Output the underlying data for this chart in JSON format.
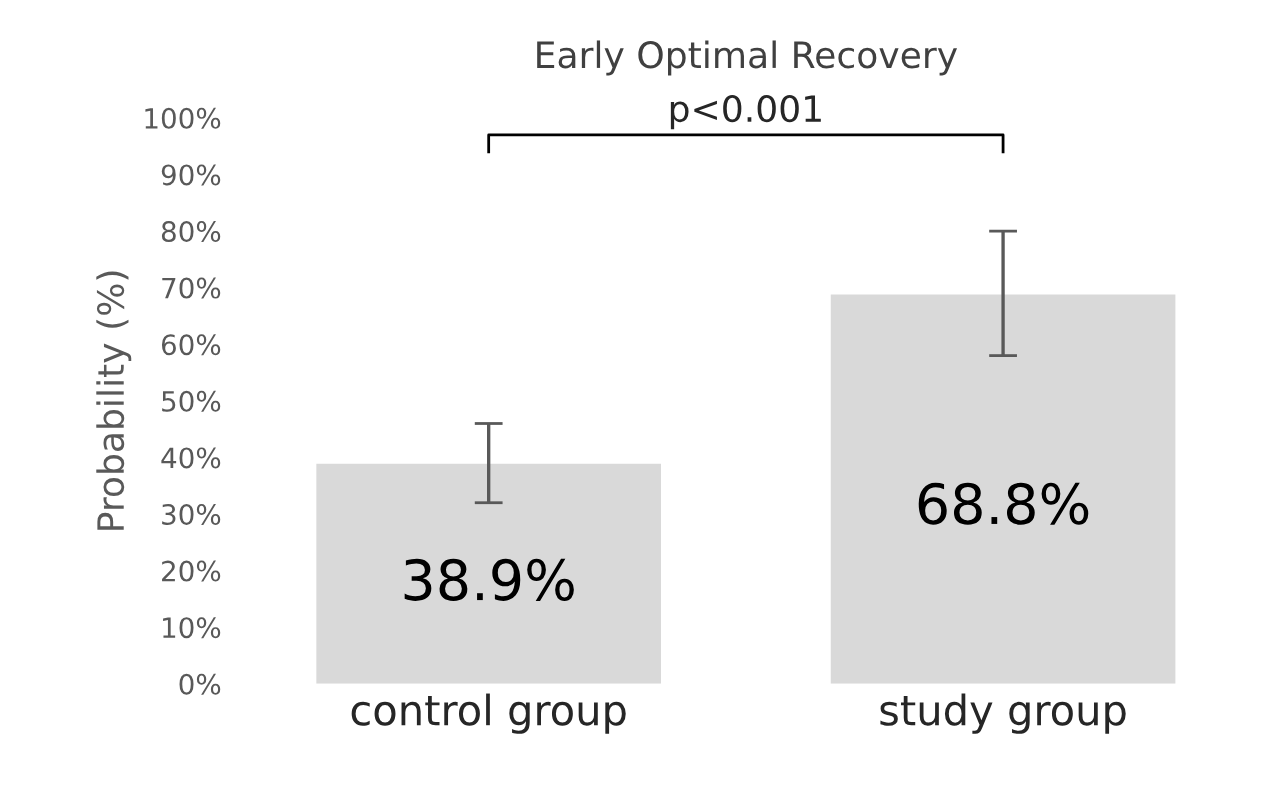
{
  "chart_data": {
    "type": "bar",
    "title": "Early Optimal Recovery",
    "ylabel": "Probability (%)",
    "categories": [
      "control group",
      "study group"
    ],
    "values": [
      38.9,
      68.8
    ],
    "color": "#d9d9d9",
    "errors": [
      [
        32,
        46
      ],
      [
        58,
        80
      ]
    ],
    "value_labels": [
      "38.9%",
      "68.8%"
    ],
    "ylim": [
      0,
      100
    ],
    "yticks": [
      {
        "value": 0,
        "label": "0%"
      },
      {
        "value": 10,
        "label": "10%"
      },
      {
        "value": 20,
        "label": "20%"
      },
      {
        "value": 30,
        "label": "30%"
      },
      {
        "value": 40,
        "label": "40%"
      },
      {
        "value": 50,
        "label": "50%"
      },
      {
        "value": 60,
        "label": "60%"
      },
      {
        "value": 70,
        "label": "70%"
      },
      {
        "value": 80,
        "label": "80%"
      },
      {
        "value": 90,
        "label": "90%"
      },
      {
        "value": 100,
        "label": "100%"
      }
    ],
    "annotations": [
      "p<0.001"
    ],
    "grid": false,
    "legend": false
  }
}
